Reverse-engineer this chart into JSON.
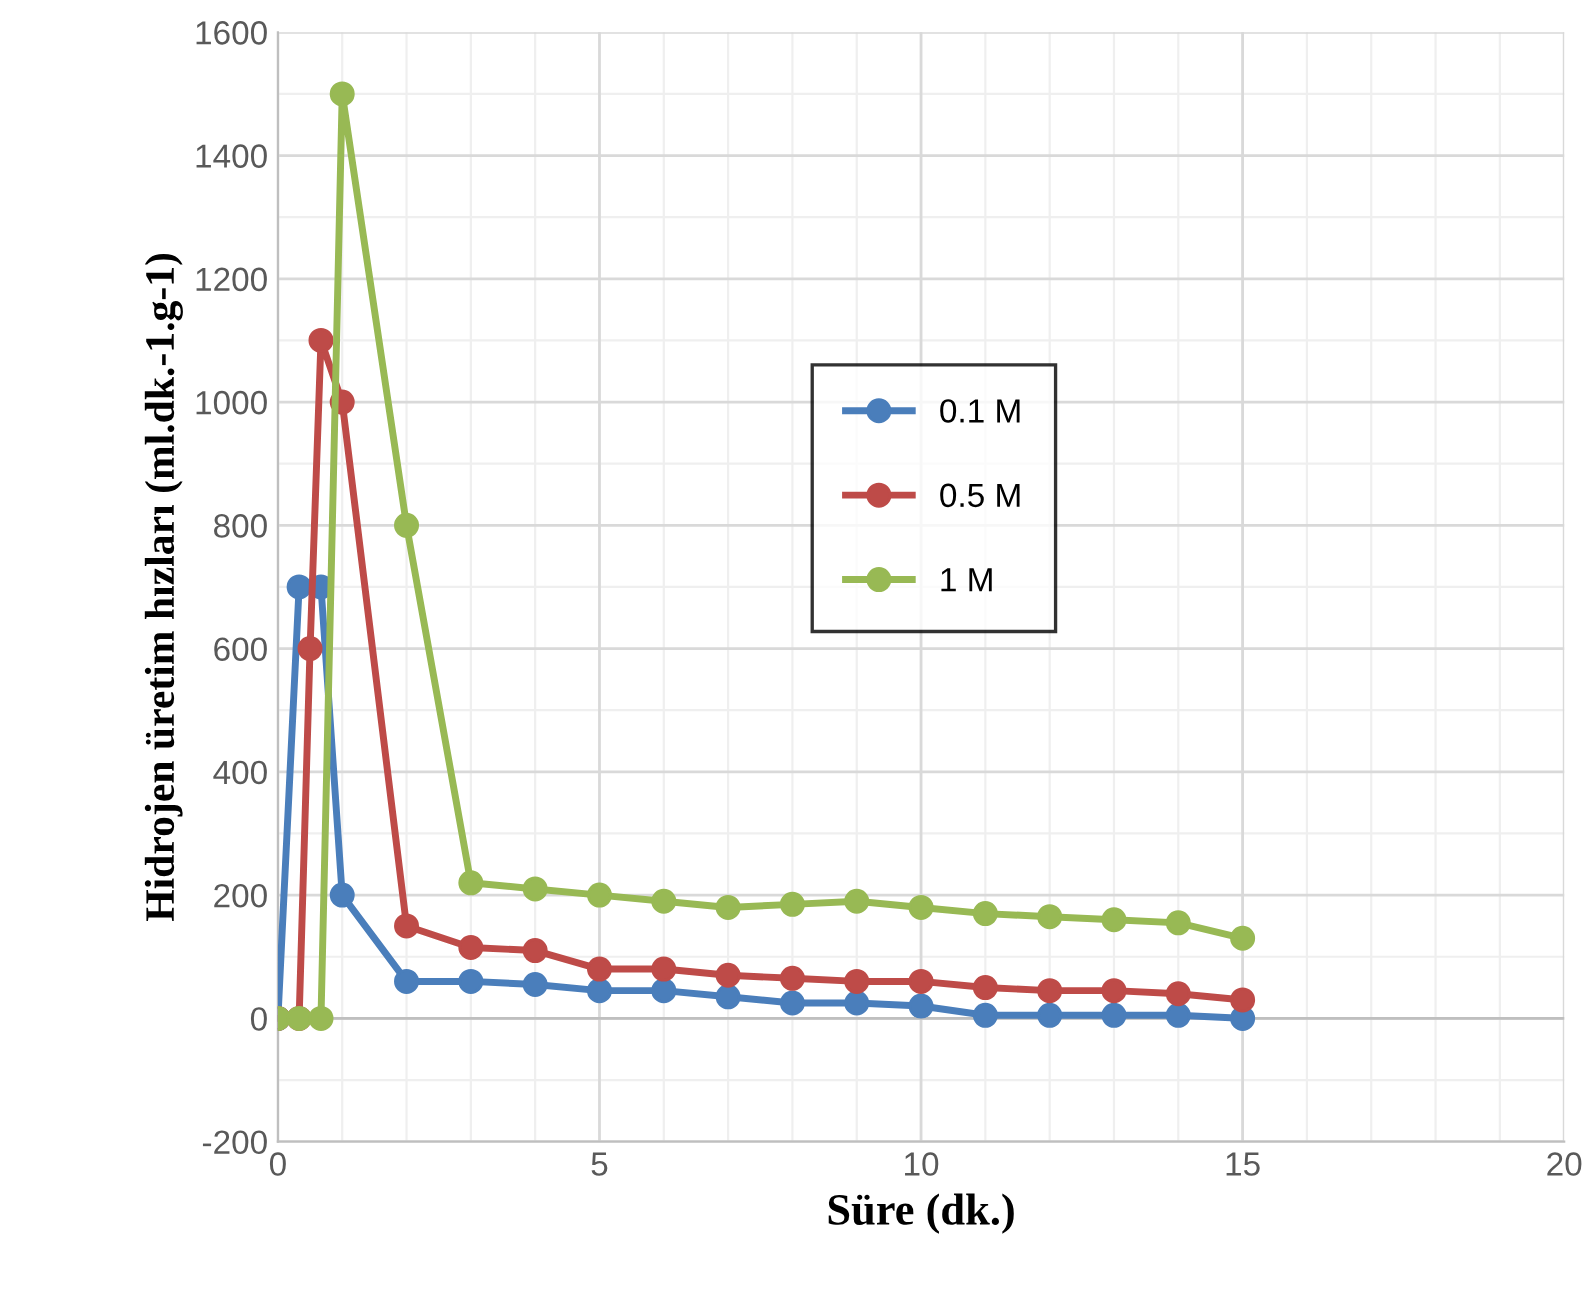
{
  "chart_data": {
    "type": "line",
    "xlabel": "Süre (dk.)",
    "ylabel": "Hidrojen üretim hızları (ml.dk.-1.g-1)",
    "xlim": [
      0,
      20
    ],
    "xticks": [
      0,
      5,
      10,
      15,
      20
    ],
    "ylim": [
      -200,
      1600
    ],
    "yticks": [
      -200,
      0,
      200,
      400,
      600,
      800,
      1000,
      1200,
      1400,
      1600
    ],
    "grid": true,
    "legend": "center",
    "marker": "circle",
    "line_style": "solid",
    "series": [
      {
        "name": "0.1 M",
        "color": "#4a7ebb",
        "x": [
          0,
          0.33,
          0.67,
          1,
          2,
          3,
          4,
          5,
          6,
          7,
          8,
          9,
          10,
          11,
          12,
          13,
          14,
          15
        ],
        "values": [
          0,
          700,
          700,
          200,
          60,
          60,
          55,
          45,
          45,
          35,
          25,
          25,
          20,
          5,
          5,
          5,
          5,
          0
        ]
      },
      {
        "name": "0.5 M",
        "color": "#be4b48",
        "x": [
          0,
          0.33,
          0.5,
          0.67,
          1,
          2,
          3,
          4,
          5,
          6,
          7,
          8,
          9,
          10,
          11,
          12,
          13,
          14,
          15
        ],
        "values": [
          0,
          0,
          600,
          1100,
          1000,
          150,
          115,
          110,
          80,
          80,
          70,
          65,
          60,
          60,
          50,
          45,
          45,
          40,
          30
        ]
      },
      {
        "name": "1 M",
        "color": "#98b954",
        "x": [
          0,
          0.33,
          0.67,
          1,
          2,
          3,
          4,
          5,
          6,
          7,
          8,
          9,
          10,
          11,
          12,
          13,
          14,
          15
        ],
        "values": [
          0,
          0,
          0,
          1500,
          800,
          220,
          210,
          200,
          190,
          180,
          185,
          190,
          180,
          170,
          165,
          160,
          155,
          130
        ]
      }
    ]
  }
}
